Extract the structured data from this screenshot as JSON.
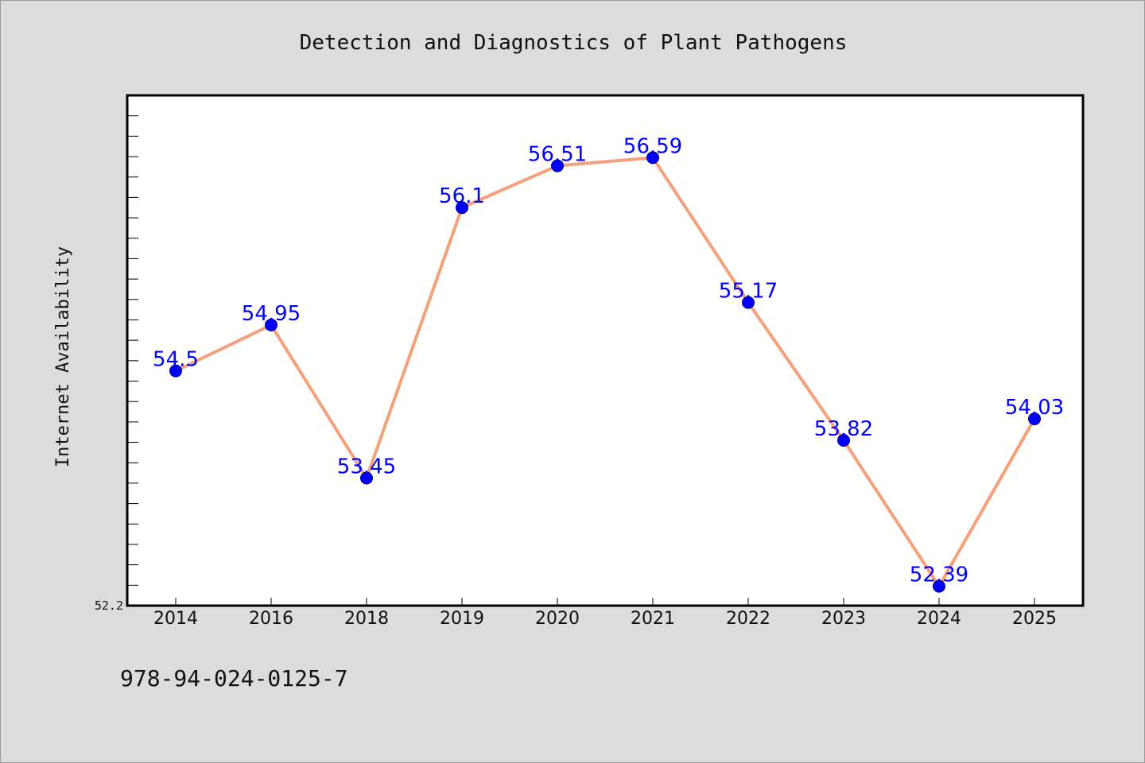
{
  "chart_data": {
    "type": "line",
    "title": "Detection and Diagnostics of Plant Pathogens",
    "xlabel": "",
    "ylabel": "Internet Availability",
    "categories": [
      "2014",
      "2016",
      "2018",
      "2019",
      "2020",
      "2021",
      "2022",
      "2023",
      "2024",
      "2025"
    ],
    "series": [
      {
        "values": [
          54.5,
          54.95,
          53.45,
          56.1,
          56.51,
          56.59,
          55.17,
          53.82,
          52.39,
          54.03
        ],
        "labels": [
          "54.5",
          "54.95",
          "53.45",
          "56.1",
          "56.51",
          "56.59",
          "55.17",
          "53.82",
          "52.39",
          "54.03"
        ],
        "line_color": "#f4a07a",
        "marker_color": "#0000ff"
      }
    ],
    "ylim": [
      52.2,
      57.2
    ],
    "yticks_labeled": [
      "52.2"
    ],
    "grid": false,
    "legend": "none",
    "plot_background": "#ffffff",
    "figure_background": "#dcdcdc"
  },
  "footer": {
    "isbn": "978-94-024-0125-7"
  }
}
